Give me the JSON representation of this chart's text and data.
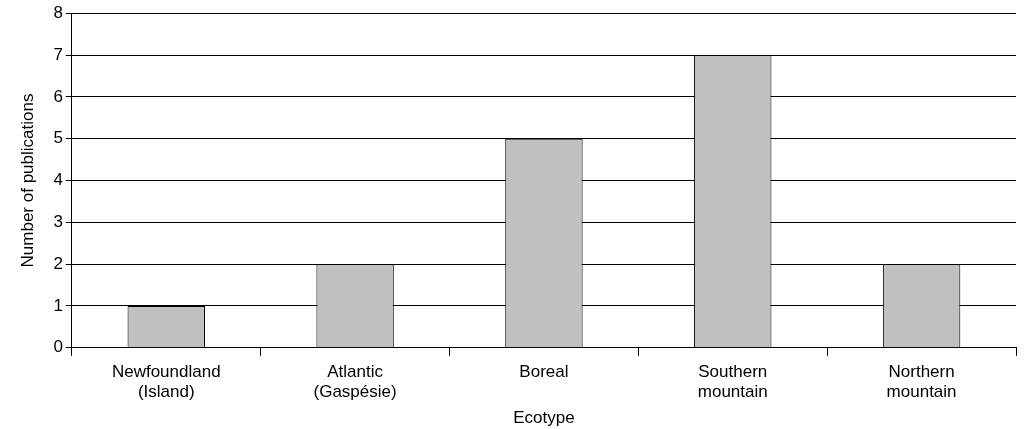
{
  "chart_data": {
    "type": "bar",
    "xlabel": "Ecotype",
    "ylabel": "Number of publications",
    "categories": [
      "Newfoundland (Island)",
      "Atlantic (Gaspésie)",
      "Boreal",
      "Southern mountain",
      "Northern mountain"
    ],
    "values": [
      1,
      2,
      5,
      7,
      2
    ],
    "color": "#c0c0c0",
    "ylim": [
      0,
      8
    ],
    "yticks": [
      0,
      1,
      2,
      3,
      4,
      5,
      6,
      7,
      8
    ],
    "grid": "y",
    "legend": false
  }
}
